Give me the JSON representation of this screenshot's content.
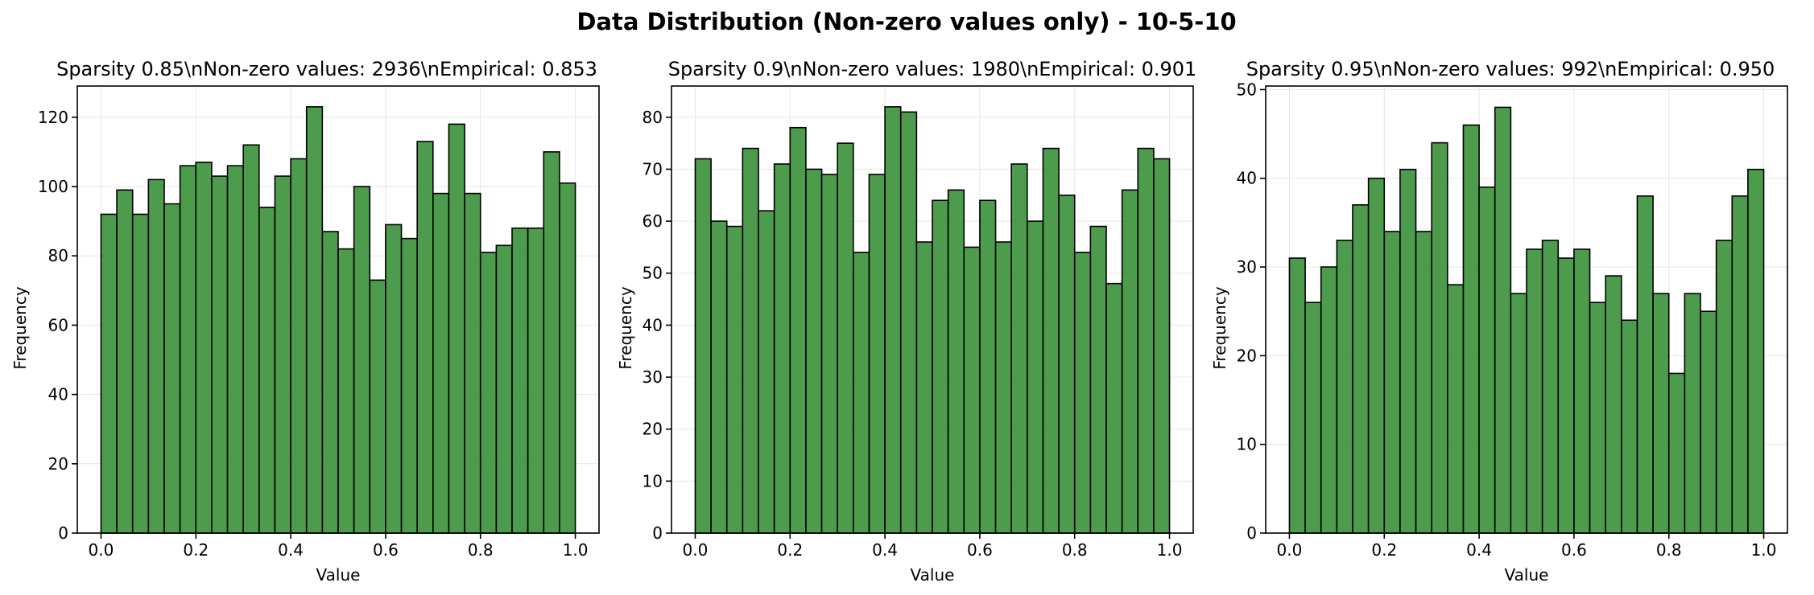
{
  "figure_title": "Data Distribution (Non-zero values only) - 10-5-10",
  "style": {
    "bar_color": "#2e8b2e",
    "bar_opacity": 0.85,
    "edge_color": "#000000"
  },
  "chart_data": [
    {
      "type": "bar",
      "title": "Sparsity 0.85\\nNon-zero values: 2936\\nEmpirical: 0.853",
      "xlabel": "Value",
      "ylabel": "Frequency",
      "bins": 30,
      "xlim": [
        -0.05,
        1.05
      ],
      "ylim": [
        0,
        129
      ],
      "xticks": [
        0.0,
        0.2,
        0.4,
        0.6,
        0.8,
        1.0
      ],
      "xtick_labels": [
        "0.0",
        "0.2",
        "0.4",
        "0.6",
        "0.8",
        "1.0"
      ],
      "yticks": [
        0,
        20,
        40,
        60,
        80,
        100,
        120
      ],
      "ytick_labels": [
        "0",
        "20",
        "40",
        "60",
        "80",
        "100",
        "120"
      ],
      "grid": true,
      "values": [
        92,
        99,
        92,
        102,
        95,
        106,
        107,
        103,
        106,
        112,
        94,
        103,
        108,
        123,
        87,
        82,
        100,
        73,
        89,
        85,
        113,
        98,
        118,
        98,
        81,
        83,
        88,
        88,
        110,
        101
      ]
    },
    {
      "type": "bar",
      "title": "Sparsity 0.9\\nNon-zero values: 1980\\nEmpirical: 0.901",
      "xlabel": "Value",
      "ylabel": "Frequency",
      "bins": 30,
      "xlim": [
        -0.05,
        1.05
      ],
      "ylim": [
        0,
        86
      ],
      "xticks": [
        0.0,
        0.2,
        0.4,
        0.6,
        0.8,
        1.0
      ],
      "xtick_labels": [
        "0.0",
        "0.2",
        "0.4",
        "0.6",
        "0.8",
        "1.0"
      ],
      "yticks": [
        0,
        10,
        20,
        30,
        40,
        50,
        60,
        70,
        80
      ],
      "ytick_labels": [
        "0",
        "10",
        "20",
        "30",
        "40",
        "50",
        "60",
        "70",
        "80"
      ],
      "grid": true,
      "values": [
        72,
        60,
        59,
        74,
        62,
        71,
        78,
        70,
        69,
        75,
        54,
        69,
        82,
        81,
        56,
        64,
        66,
        55,
        64,
        56,
        71,
        60,
        74,
        65,
        54,
        59,
        48,
        66,
        74,
        72
      ]
    },
    {
      "type": "bar",
      "title": "Sparsity 0.95\\nNon-zero values: 992\\nEmpirical: 0.950",
      "xlabel": "Value",
      "ylabel": "Frequency",
      "bins": 30,
      "xlim": [
        -0.05,
        1.05
      ],
      "ylim": [
        0,
        50.4
      ],
      "xticks": [
        0.0,
        0.2,
        0.4,
        0.6,
        0.8,
        1.0
      ],
      "xtick_labels": [
        "0.0",
        "0.2",
        "0.4",
        "0.6",
        "0.8",
        "1.0"
      ],
      "yticks": [
        0,
        10,
        20,
        30,
        40,
        50
      ],
      "ytick_labels": [
        "0",
        "10",
        "20",
        "30",
        "40",
        "50"
      ],
      "grid": true,
      "values": [
        31,
        26,
        30,
        33,
        37,
        40,
        34,
        41,
        34,
        44,
        28,
        46,
        39,
        48,
        27,
        32,
        33,
        31,
        32,
        26,
        29,
        24,
        38,
        27,
        18,
        27,
        25,
        33,
        38,
        41
      ]
    }
  ]
}
